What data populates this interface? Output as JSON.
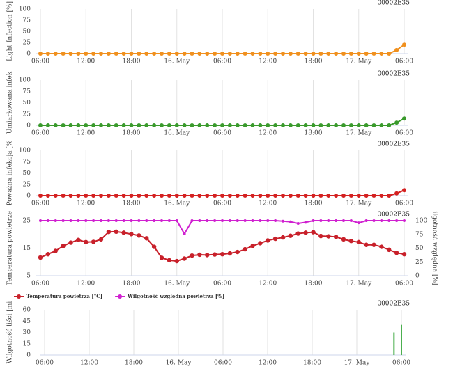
{
  "chart_data": [
    {
      "type": "line",
      "subtitle": "00002E35",
      "ylabel": "Light Infection [%]",
      "color": "#f0901e",
      "categories": [
        "06:00",
        null,
        null,
        null,
        null,
        null,
        "12:00",
        null,
        null,
        null,
        null,
        null,
        "18:00",
        null,
        null,
        null,
        null,
        null,
        "16. May",
        null,
        null,
        null,
        null,
        null,
        "06:00",
        null,
        null,
        null,
        null,
        null,
        "12:00",
        null,
        null,
        null,
        null,
        null,
        "18:00",
        null,
        null,
        null,
        null,
        null,
        "17. May",
        null,
        null,
        null,
        null,
        null,
        "06:00"
      ],
      "values": [
        0,
        0,
        0,
        0,
        0,
        0,
        0,
        0,
        0,
        0,
        0,
        0,
        0,
        0,
        0,
        0,
        0,
        0,
        0,
        0,
        0,
        0,
        0,
        0,
        0,
        0,
        0,
        0,
        0,
        0,
        0,
        0,
        0,
        0,
        0,
        0,
        0,
        0,
        0,
        0,
        0,
        0,
        0,
        0,
        0,
        0,
        0,
        8,
        20
      ],
      "ylim": [
        0,
        100
      ],
      "yticks": [
        0,
        25,
        50,
        75,
        100
      ],
      "grid": "x"
    },
    {
      "type": "line",
      "subtitle": "00002E35",
      "ylabel": "Umiarkowana infek",
      "color": "#3a9a2c",
      "categories": [
        "06:00",
        null,
        null,
        null,
        null,
        null,
        "12:00",
        null,
        null,
        null,
        null,
        null,
        "18:00",
        null,
        null,
        null,
        null,
        null,
        "16. May",
        null,
        null,
        null,
        null,
        null,
        "06:00",
        null,
        null,
        null,
        null,
        null,
        "12:00",
        null,
        null,
        null,
        null,
        null,
        "18:00",
        null,
        null,
        null,
        null,
        null,
        "17. May",
        null,
        null,
        null,
        null,
        null,
        "06:00"
      ],
      "values": [
        0,
        0,
        0,
        0,
        0,
        0,
        0,
        0,
        0,
        0,
        0,
        0,
        0,
        0,
        0,
        0,
        0,
        0,
        0,
        0,
        0,
        0,
        0,
        0,
        0,
        0,
        0,
        0,
        0,
        0,
        0,
        0,
        0,
        0,
        0,
        0,
        0,
        0,
        0,
        0,
        0,
        0,
        0,
        0,
        0,
        0,
        0,
        6,
        15
      ],
      "ylim": [
        0,
        100
      ],
      "yticks": [
        0,
        25,
        50,
        75,
        100
      ],
      "grid": "x"
    },
    {
      "type": "line",
      "subtitle": "00002E35",
      "ylabel": "Poważna infekcja [%",
      "color": "#d42020",
      "categories": [
        "06:00",
        null,
        null,
        null,
        null,
        null,
        "12:00",
        null,
        null,
        null,
        null,
        null,
        "18:00",
        null,
        null,
        null,
        null,
        null,
        "16. May",
        null,
        null,
        null,
        null,
        null,
        "06:00",
        null,
        null,
        null,
        null,
        null,
        "12:00",
        null,
        null,
        null,
        null,
        null,
        "18:00",
        null,
        null,
        null,
        null,
        null,
        "17. May",
        null,
        null,
        null,
        null,
        null,
        "06:00"
      ],
      "values": [
        0,
        0,
        0,
        0,
        0,
        0,
        0,
        0,
        0,
        0,
        0,
        0,
        0,
        0,
        0,
        0,
        0,
        0,
        0,
        0,
        0,
        0,
        0,
        0,
        0,
        0,
        0,
        0,
        0,
        0,
        0,
        0,
        0,
        0,
        0,
        0,
        0,
        0,
        0,
        0,
        0,
        0,
        0,
        0,
        0,
        0,
        0,
        5,
        12
      ],
      "ylim": [
        0,
        100
      ],
      "yticks": [
        0,
        25,
        50,
        75,
        100
      ],
      "grid": "x"
    },
    {
      "type": "line",
      "subtitle": "00002E35",
      "ylabel": "Temperatura powietrze",
      "y2label": "ilgotność względna [%]",
      "categories": [
        "06:00",
        null,
        null,
        null,
        null,
        null,
        "12:00",
        null,
        null,
        null,
        null,
        null,
        "18:00",
        null,
        null,
        null,
        null,
        null,
        "16. May",
        null,
        null,
        null,
        null,
        null,
        "06:00",
        null,
        null,
        null,
        null,
        null,
        "12:00",
        null,
        null,
        null,
        null,
        null,
        "18:00",
        null,
        null,
        null,
        null,
        null,
        "17. May",
        null,
        null,
        null,
        null,
        null,
        "06:00"
      ],
      "series": [
        {
          "name": "Temperatura powietrza [°C]",
          "color": "#c8202a",
          "values": [
            11.6,
            12.8,
            14.0,
            15.8,
            17.0,
            18.0,
            17.2,
            17.3,
            18.2,
            20.9,
            21.0,
            20.6,
            20.1,
            19.6,
            18.6,
            15.5,
            11.5,
            10.6,
            10.3,
            11.2,
            12.3,
            12.6,
            12.5,
            12.7,
            12.8,
            13.1,
            13.6,
            14.6,
            15.8,
            16.8,
            17.8,
            18.4,
            18.9,
            19.5,
            20.3,
            20.6,
            20.8,
            19.4,
            19.3,
            19.1,
            18.2,
            17.6,
            17.2,
            16.2,
            16.2,
            15.5,
            14.4,
            13.3,
            12.8
          ]
        },
        {
          "name": "Wilgotność względna powietrza [%]",
          "color": "#d020d0",
          "axis": "y2",
          "values": [
            100,
            100,
            100,
            100,
            100,
            100,
            100,
            100,
            100,
            100,
            100,
            100,
            100,
            100,
            100,
            100,
            100,
            100,
            100,
            76,
            100,
            100,
            100,
            100,
            100,
            100,
            100,
            100,
            100,
            100,
            100,
            100,
            99,
            98,
            95,
            97,
            100,
            100,
            100,
            100,
            100,
            100,
            96,
            100,
            100,
            100,
            100,
            100,
            100
          ]
        }
      ],
      "ylim": [
        5,
        25
      ],
      "yticks": [
        5,
        15,
        25
      ],
      "y2lim": [
        0,
        100
      ],
      "y2ticks": [
        0,
        25,
        50,
        75,
        100
      ],
      "grid": "x",
      "legend": "bottom-left"
    },
    {
      "type": "bar",
      "subtitle": "00002E35",
      "ylabel": "Wilgotność liści [mi",
      "color": "#4caf50",
      "categories": [
        "06:00",
        null,
        null,
        null,
        null,
        null,
        "12:00",
        null,
        null,
        null,
        null,
        null,
        "18:00",
        null,
        null,
        null,
        null,
        null,
        "16. May",
        null,
        null,
        null,
        null,
        null,
        "06:00",
        null,
        null,
        null,
        null,
        null,
        "12:00",
        null,
        null,
        null,
        null,
        null,
        "18:00",
        null,
        null,
        null,
        null,
        null,
        "17. May",
        null,
        null,
        null,
        null,
        null,
        "06:00"
      ],
      "values": [
        0,
        0,
        0,
        0,
        0,
        0,
        0,
        0,
        0,
        0,
        0,
        0,
        0,
        0,
        0,
        0,
        0,
        0,
        0,
        0,
        0,
        0,
        0,
        0,
        0,
        0,
        0,
        0,
        0,
        0,
        0,
        0,
        0,
        0,
        0,
        0,
        0,
        0,
        0,
        0,
        0,
        0,
        0,
        0,
        0,
        0,
        0,
        30,
        40
      ],
      "ylim": [
        0,
        60
      ],
      "yticks": [
        0,
        15,
        30,
        45,
        60
      ],
      "grid": "x"
    }
  ]
}
